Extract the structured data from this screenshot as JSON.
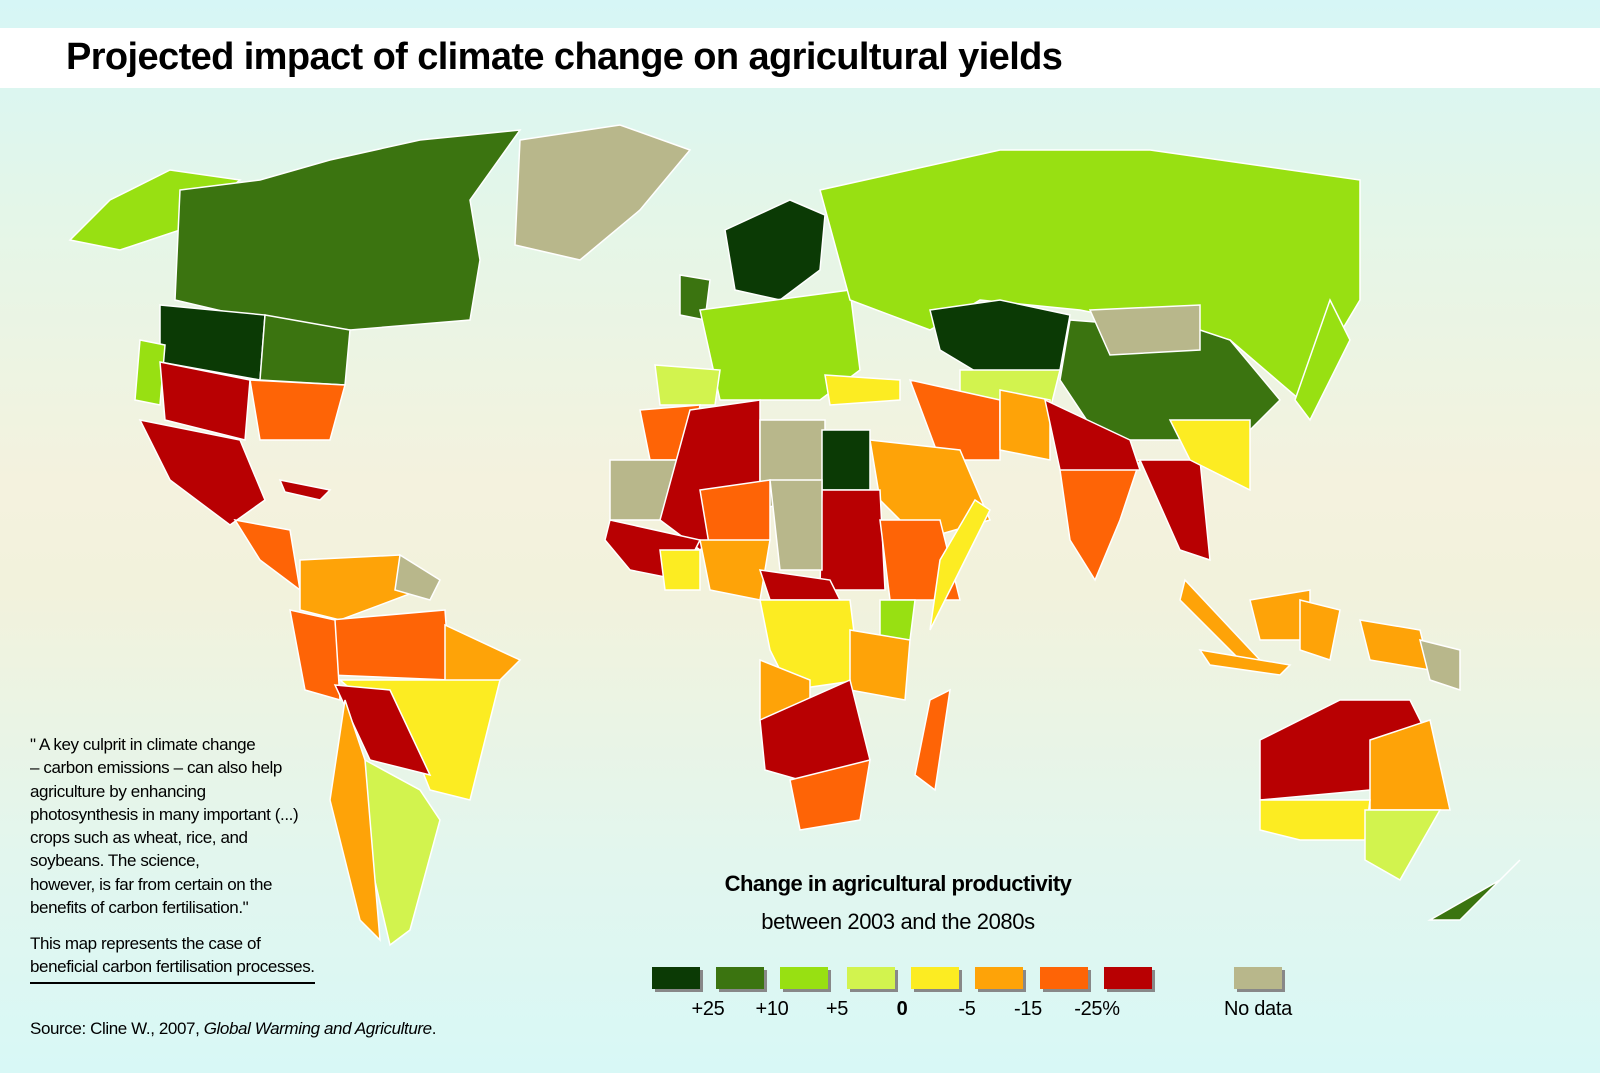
{
  "title": "Projected impact of climate change on agricultural yields",
  "quote": {
    "lines": [
      "\" A key culprit in climate change",
      "– carbon emissions – can also help",
      "agriculture by enhancing",
      "photosynthesis in many important (...)",
      "crops such as wheat, rice, and",
      "soybeans. The science,",
      "however, is far from certain on the",
      "benefits of carbon fertilisation.\""
    ]
  },
  "note": {
    "line1": "This map represents the case of",
    "line2": "beneficial carbon fertilisation processes."
  },
  "source": {
    "prefix": "Source: Cline W., 2007, ",
    "title": "Global Warming and Agriculture",
    "suffix": "."
  },
  "legend": {
    "title": "Change in agricultural productivity",
    "subtitle": "between 2003 and the 2080s",
    "swatches": [
      {
        "color": "#0b3a05"
      },
      {
        "color": "#3b7410"
      },
      {
        "color": "#98e012"
      },
      {
        "color": "#d2f34e"
      },
      {
        "color": "#fcec22"
      },
      {
        "color": "#fea308"
      },
      {
        "color": "#fe6406"
      },
      {
        "color": "#b80002"
      }
    ],
    "labels": [
      "+25",
      "+10",
      "+5",
      "0",
      "-5",
      "-15",
      "-25%"
    ],
    "no_data": {
      "label": "No data",
      "color": "#b8b78b"
    }
  }
}
